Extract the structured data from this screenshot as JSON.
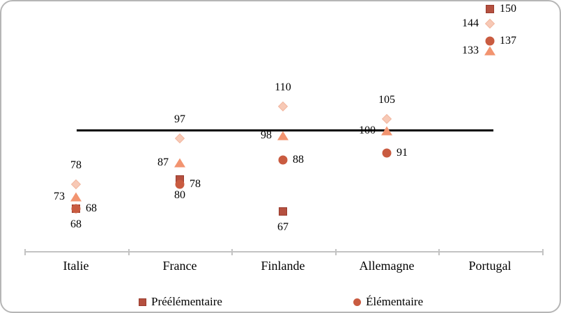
{
  "card": {
    "background": "#ffffff",
    "border_color": "#b6b6b6"
  },
  "chart_data": {
    "type": "scatter",
    "title": "",
    "categories": [
      "Italie",
      "France",
      "Finlande",
      "Allemagne",
      "Portugal"
    ],
    "reference_line": {
      "value": 100,
      "color": "#000000"
    },
    "y_axis_labels_visible": false,
    "grid": false,
    "legend_position": "bottom",
    "axis_color": "#c3c3c3",
    "series": [
      {
        "name": "Préélémentaire",
        "marker": "square",
        "color": "#b5503f",
        "points": [
          {
            "category": "Italie",
            "value": 68,
            "label_pos": "below"
          },
          {
            "category": "France",
            "value": 80,
            "label_pos": "below"
          },
          {
            "category": "Finlande",
            "value": 67,
            "label_pos": "below"
          },
          {
            "category": "Portugal",
            "value": 150,
            "label_pos": "right"
          }
        ]
      },
      {
        "name": "",
        "marker": "diamond",
        "color": "#f7c9b6",
        "points": [
          {
            "category": "Italie",
            "value": 78,
            "label_pos": "above"
          },
          {
            "category": "France",
            "value": 97,
            "label_pos": "above"
          },
          {
            "category": "Finlande",
            "value": 110,
            "label_pos": "above"
          },
          {
            "category": "Allemagne",
            "value": 105,
            "label_pos": "above"
          },
          {
            "category": "Portugal",
            "value": 144,
            "label_pos": "left"
          }
        ]
      },
      {
        "name": "",
        "marker": "triangle",
        "color": "#f29470",
        "points": [
          {
            "category": "Italie",
            "value": 73,
            "label_pos": "left"
          },
          {
            "category": "France",
            "value": 87,
            "label_pos": "left"
          },
          {
            "category": "Finlande",
            "value": 98,
            "label_pos": "left"
          },
          {
            "category": "Allemagne",
            "value": 100,
            "label_pos": "left"
          },
          {
            "category": "Portugal",
            "value": 133,
            "label_pos": "left"
          }
        ]
      },
      {
        "name": "Élémentaire",
        "marker": "circle",
        "color": "#c95b40",
        "points": [
          {
            "category": "Italie",
            "value": 68,
            "label_pos": "right"
          },
          {
            "category": "France",
            "value": 78,
            "label_pos": "right"
          },
          {
            "category": "Finlande",
            "value": 88,
            "label_pos": "right"
          },
          {
            "category": "Allemagne",
            "value": 91,
            "label_pos": "right"
          },
          {
            "category": "Portugal",
            "value": 137,
            "label_pos": "right"
          }
        ]
      }
    ],
    "legend": [
      {
        "label": "Préélémentaire",
        "marker": "square"
      },
      {
        "label": "Élémentaire",
        "marker": "circle"
      }
    ]
  }
}
